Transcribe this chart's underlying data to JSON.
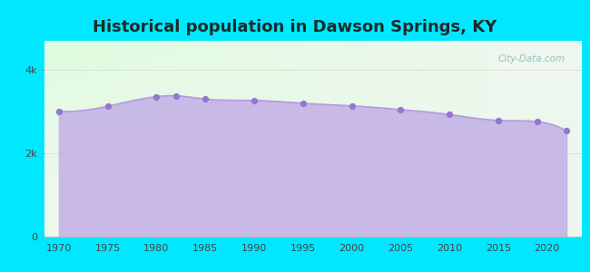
{
  "title": "Historical population in Dawson Springs, KY",
  "years": [
    1970,
    1975,
    1980,
    1982,
    1985,
    1990,
    1995,
    2000,
    2005,
    2010,
    2015,
    2019,
    2022
  ],
  "population": [
    3010,
    3130,
    3360,
    3380,
    3300,
    3270,
    3200,
    3140,
    3050,
    2930,
    2790,
    2760,
    2540
  ],
  "line_color": "#b39ddb",
  "fill_color": "#c5b3e6",
  "marker_color": "#9575cd",
  "marker_size": 18,
  "bg_outer": "#00e8ff",
  "title_color": "#1a2a2a",
  "title_fontsize": 13,
  "ytick_labels": [
    "0",
    "2k",
    "4k"
  ],
  "ytick_values": [
    0,
    2000,
    4000
  ],
  "ylim": [
    0,
    4700
  ],
  "xlim": [
    1968.5,
    2023.5
  ],
  "watermark": "City-Data.com",
  "xlabel_fontsize": 8,
  "ylabel_fontsize": 8
}
